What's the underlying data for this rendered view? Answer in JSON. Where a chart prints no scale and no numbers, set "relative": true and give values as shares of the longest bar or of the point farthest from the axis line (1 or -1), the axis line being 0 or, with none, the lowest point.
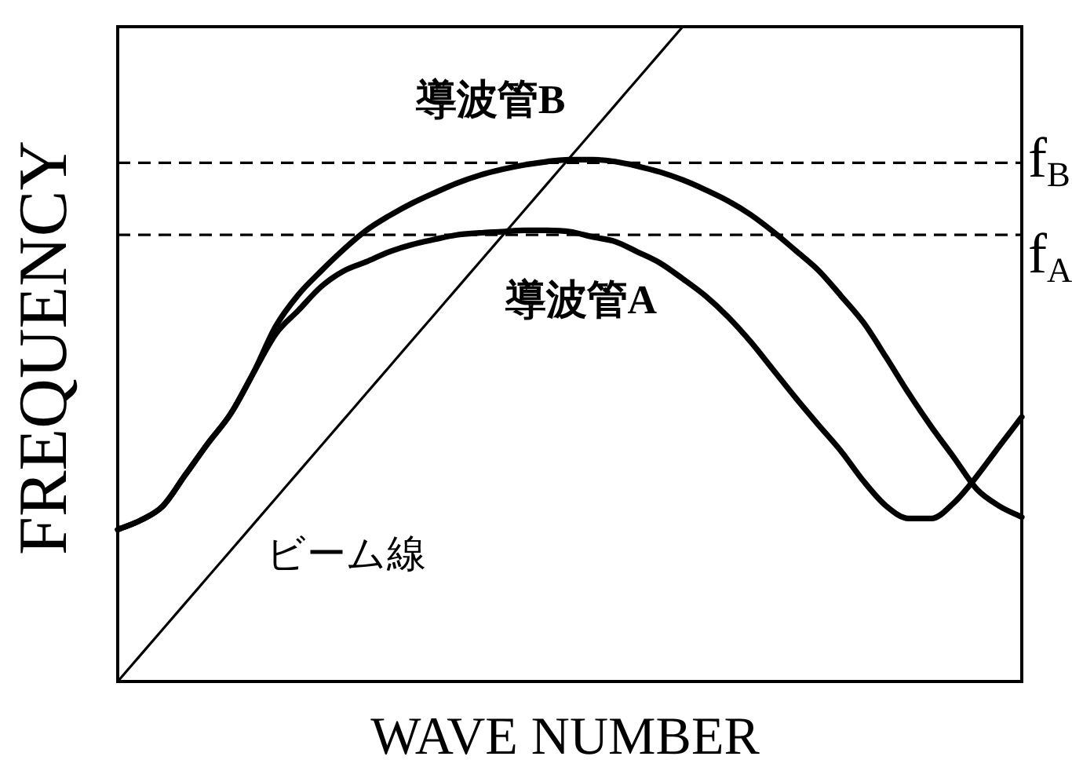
{
  "chart_data": {
    "type": "line",
    "xlabel": "WAVE NUMBER",
    "ylabel": "FREQUENCY",
    "relative": true,
    "categories": [
      null,
      null,
      null,
      null,
      null,
      null,
      null,
      null,
      null,
      null,
      null,
      null,
      null,
      null,
      null,
      null,
      null,
      null,
      null,
      null,
      null,
      null,
      null,
      null,
      null,
      null,
      null,
      null,
      null,
      null,
      null,
      null,
      null,
      null,
      null,
      null,
      null,
      null,
      null,
      null,
      null
    ],
    "series": [
      {
        "name": "導波管A",
        "color": "#000000",
        "values": [
          0.232,
          0.246,
          0.268,
          0.316,
          0.364,
          0.409,
          0.471,
          0.531,
          0.567,
          0.603,
          0.627,
          0.641,
          0.656,
          0.667,
          0.675,
          0.682,
          0.685,
          0.687,
          0.689,
          0.689,
          0.687,
          0.679,
          0.672,
          0.656,
          0.639,
          0.615,
          0.589,
          0.557,
          0.519,
          0.476,
          0.433,
          0.392,
          0.352,
          0.306,
          0.268,
          0.249,
          0.249,
          0.273,
          0.313,
          0.359,
          0.404
        ]
      },
      {
        "name": "導波管B",
        "color": "#000000",
        "values": [
          0.232,
          0.246,
          0.268,
          0.316,
          0.364,
          0.409,
          0.471,
          0.543,
          0.591,
          0.627,
          0.66,
          0.689,
          0.711,
          0.73,
          0.746,
          0.761,
          0.773,
          0.782,
          0.789,
          0.794,
          0.797,
          0.797,
          0.794,
          0.787,
          0.778,
          0.766,
          0.751,
          0.734,
          0.713,
          0.687,
          0.658,
          0.628,
          0.589,
          0.548,
          0.495,
          0.44,
          0.389,
          0.342,
          0.294,
          0.268,
          0.251
        ]
      },
      {
        "name": "ビーム線",
        "color": "#000000",
        "values": [
          0,
          0.04,
          0.08,
          0.12,
          0.16,
          0.2,
          0.24,
          0.28,
          0.32,
          0.36,
          0.4,
          0.44,
          0.48,
          0.52,
          0.56,
          0.6,
          0.64,
          0.68,
          0.72,
          0.76,
          0.8,
          0.84,
          0.88,
          0.92,
          0.96,
          1.0,
          null,
          null,
          null,
          null,
          null,
          null,
          null,
          null,
          null,
          null,
          null,
          null,
          null,
          null,
          null
        ]
      }
    ],
    "ref_lines": [
      {
        "axis": "y",
        "value": 0.792,
        "label": "f$_{B}$",
        "color": "#000000",
        "line_style": "dashed"
      },
      {
        "axis": "y",
        "value": 0.682,
        "label": "f$_{A}$",
        "color": "#000000",
        "line_style": "dashed"
      }
    ]
  }
}
